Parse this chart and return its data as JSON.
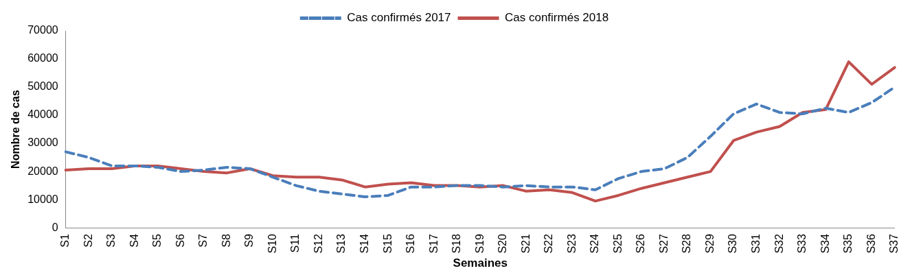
{
  "chart_data": {
    "type": "line",
    "xlabel": "Semaines",
    "ylabel": "Nombre de cas",
    "categories": [
      "S1",
      "S2",
      "S3",
      "S4",
      "S5",
      "S6",
      "S7",
      "S8",
      "S9",
      "S10",
      "S11",
      "S12",
      "S13",
      "S14",
      "S15",
      "S16",
      "S17",
      "S18",
      "S19",
      "S20",
      "S21",
      "S22",
      "S23",
      "S24",
      "S25",
      "S26",
      "S27",
      "S28",
      "S29",
      "S30",
      "S31",
      "S32",
      "S33",
      "S34",
      "S35",
      "S36",
      "S37"
    ],
    "series": [
      {
        "name": "Cas confirmés 2017",
        "color": "#4a7ebb",
        "line_style": "dashed",
        "values": [
          27000,
          25000,
          22000,
          22000,
          21500,
          20000,
          20500,
          21500,
          21000,
          18000,
          15000,
          13000,
          12000,
          11000,
          11500,
          14500,
          14500,
          15000,
          15000,
          14500,
          15000,
          14500,
          14500,
          13500,
          17500,
          20000,
          21000,
          25000,
          32500,
          40500,
          44000,
          41000,
          40500,
          42500,
          41000,
          44500,
          50000
        ]
      },
      {
        "name": "Cas confirmés 2018",
        "color": "#c0504d",
        "line_style": "solid",
        "values": [
          20500,
          21000,
          21000,
          22000,
          22000,
          21000,
          20000,
          19500,
          21000,
          18500,
          18000,
          18000,
          17000,
          14500,
          15500,
          16000,
          15000,
          15000,
          14500,
          15000,
          13000,
          13500,
          12500,
          9500,
          11500,
          14000,
          16000,
          18000,
          20000,
          31000,
          34000,
          36000,
          41000,
          42000,
          59000,
          51000,
          57000
        ]
      }
    ],
    "ylim": [
      0,
      70000
    ],
    "yticks": [
      0,
      10000,
      20000,
      30000,
      40000,
      50000,
      60000,
      70000
    ],
    "grid": false,
    "legend": "top",
    "marker": "none"
  }
}
